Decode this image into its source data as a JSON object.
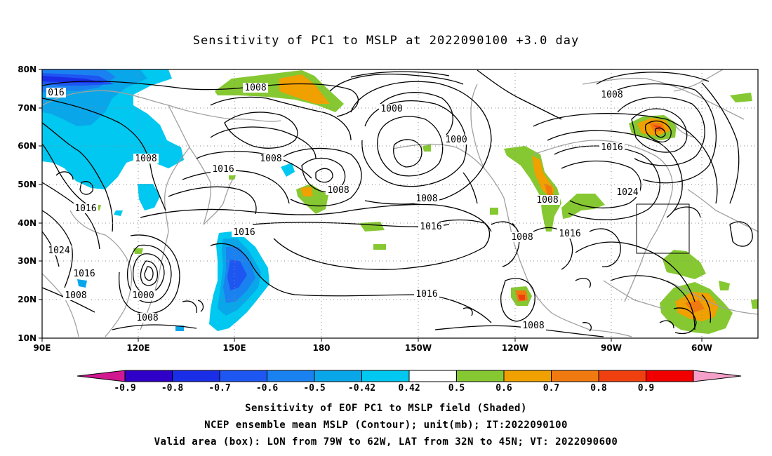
{
  "title": "Sensitivity of PC1 to MSLP at 2022090100 +3.0 day",
  "map": {
    "lat_labels": [
      "80N",
      "70N",
      "60N",
      "50N",
      "40N",
      "30N",
      "20N",
      "10N"
    ],
    "lon_labels": [
      "90E",
      "120E",
      "150E",
      "180",
      "150W",
      "120W",
      "90W",
      "60W"
    ],
    "contour_labels": [
      {
        "text": "016"
      },
      {
        "text": "1008"
      },
      {
        "text": "1008"
      },
      {
        "text": "1000"
      },
      {
        "text": "1008"
      },
      {
        "text": "1016"
      },
      {
        "text": "1008"
      },
      {
        "text": "1000"
      },
      {
        "text": "1008"
      },
      {
        "text": "1016"
      },
      {
        "text": "1008"
      },
      {
        "text": "1016"
      },
      {
        "text": "1024"
      },
      {
        "text": "1008"
      },
      {
        "text": "1016"
      },
      {
        "text": "1016"
      },
      {
        "text": "1008"
      },
      {
        "text": "1016"
      },
      {
        "text": "1024"
      },
      {
        "text": "1016"
      },
      {
        "text": "1008"
      },
      {
        "text": "1000"
      },
      {
        "text": "1008"
      },
      {
        "text": "1016"
      },
      {
        "text": "1008"
      }
    ],
    "valid_area_box": {
      "lon_from": "79W",
      "lon_to": "62W",
      "lat_from": "32N",
      "lat_to": "45N"
    }
  },
  "colorbar": {
    "labels": [
      "-0.9",
      "-0.8",
      "-0.7",
      "-0.6",
      "-0.5",
      "-0.42",
      "0.42",
      "0.5",
      "0.6",
      "0.7",
      "0.8",
      "0.9"
    ],
    "colors": [
      "#2f00c8",
      "#1a2ee8",
      "#1e56f2",
      "#1a82f0",
      "#0aa6ea",
      "#00c8f0",
      "#ffffff",
      "#86c832",
      "#f0a000",
      "#f07a10",
      "#f04010",
      "#f00000"
    ],
    "end_low": "#d01890",
    "end_high": "#f4a0c8"
  },
  "captions": {
    "line1": "Sensitivity of EOF PC1 to MSLP field (Shaded)",
    "line2": "NCEP ensemble mean MSLP (Contour); unit(mb); IT:2022090100",
    "line3": "Valid area (box): LON from 79W to 62W, LAT from 32N to 45N; VT: 2022090600"
  }
}
